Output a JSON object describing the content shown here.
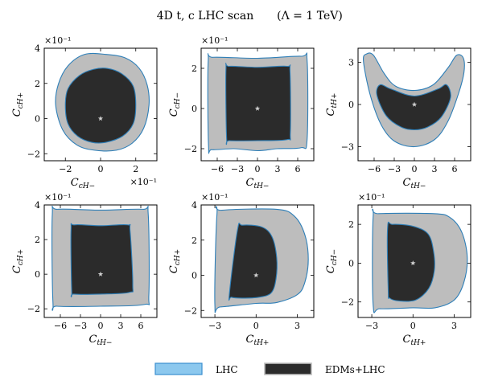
{
  "title": "4D t, c LHC scan",
  "subtitle": "(Λ = 1 TeV)",
  "colors": {
    "lhc_fill": "#bdbdbd",
    "lhc_edge": "#2e7fb8",
    "edm_fill": "#2b2b2b",
    "edm_edge": "#2e7fb8",
    "star": "#cfcfcf",
    "legend_lhc_fill": "#8cc8ee",
    "legend_lhc_edge": "#3b8fd0",
    "legend_edm_fill": "#2b2b2b",
    "legend_edm_edge": "#bdbdbd"
  },
  "legend": [
    {
      "label": "LHC",
      "key": "lhc"
    },
    {
      "label": "EDMs+LHC",
      "key": "edm"
    }
  ],
  "chart_data": [
    {
      "type": "contour",
      "xlabel": {
        "base": "C",
        "sub": "cH−"
      },
      "ylabel": {
        "base": "C",
        "sub": "cH+"
      },
      "xlim": [
        -3.2,
        3.2
      ],
      "ylim": [
        -2.4,
        4.0
      ],
      "xticks": [
        -2,
        0,
        2
      ],
      "yticks": [
        -2,
        0,
        2,
        4
      ],
      "x_exponent": "×10⁻¹",
      "y_exponent": "×10⁻¹",
      "lhc_region": [
        [
          -2.55,
          0.75
        ],
        [
          -2.4,
          1.95
        ],
        [
          -1.85,
          3.0
        ],
        [
          -0.9,
          3.65
        ],
        [
          0.3,
          3.65
        ],
        [
          1.4,
          3.45
        ],
        [
          2.2,
          2.85
        ],
        [
          2.65,
          1.9
        ],
        [
          2.75,
          0.75
        ],
        [
          2.45,
          -0.55
        ],
        [
          1.8,
          -1.4
        ],
        [
          0.9,
          -1.8
        ],
        [
          -0.35,
          -1.8
        ],
        [
          -1.35,
          -1.5
        ],
        [
          -2.15,
          -0.65
        ]
      ],
      "edm_region": [
        [
          -2.0,
          0.75
        ],
        [
          -1.85,
          1.7
        ],
        [
          -1.2,
          2.45
        ],
        [
          -0.4,
          2.8
        ],
        [
          0.4,
          2.85
        ],
        [
          1.2,
          2.55
        ],
        [
          1.85,
          1.85
        ],
        [
          2.0,
          0.75
        ],
        [
          1.85,
          -0.3
        ],
        [
          1.25,
          -1.0
        ],
        [
          0.3,
          -1.35
        ],
        [
          -0.5,
          -1.35
        ],
        [
          -1.3,
          -1.0
        ],
        [
          -1.85,
          -0.3
        ]
      ],
      "best_fit": [
        0,
        0
      ]
    },
    {
      "type": "contour",
      "xlabel": {
        "base": "C",
        "sub": "tH−"
      },
      "ylabel": {
        "base": "C",
        "sub": "cH−"
      },
      "xlim": [
        -8.4,
        8.4
      ],
      "ylim": [
        -2.6,
        3.0
      ],
      "xticks": [
        -6,
        -3,
        0,
        3,
        6
      ],
      "yticks": [
        -2,
        0,
        2
      ],
      "x_exponent": "",
      "y_exponent": "×10⁻¹",
      "lhc_region": [
        [
          -7.3,
          -1.85
        ],
        [
          -7.35,
          2.35
        ],
        [
          -6.6,
          2.55
        ],
        [
          0,
          2.5
        ],
        [
          6.5,
          2.6
        ],
        [
          7.4,
          2.4
        ],
        [
          7.4,
          -1.55
        ],
        [
          6.5,
          -1.95
        ],
        [
          3.0,
          -2.0
        ],
        [
          0,
          -2.1
        ],
        [
          -3.5,
          -2.0
        ],
        [
          -6.8,
          -2.05
        ]
      ],
      "edm_region": [
        [
          -4.6,
          -1.5
        ],
        [
          -4.7,
          1.95
        ],
        [
          -4.2,
          2.1
        ],
        [
          0,
          2.05
        ],
        [
          4.4,
          2.1
        ],
        [
          4.85,
          1.85
        ],
        [
          4.9,
          -1.2
        ],
        [
          4.4,
          -1.55
        ],
        [
          0,
          -1.6
        ],
        [
          -4.2,
          -1.6
        ]
      ],
      "best_fit": [
        0,
        0
      ]
    },
    {
      "type": "contour",
      "xlabel": {
        "base": "C",
        "sub": "tH−"
      },
      "ylabel": {
        "base": "C",
        "sub": "tH+"
      },
      "xlim": [
        -8.4,
        8.4
      ],
      "ylim": [
        -4.0,
        4.0
      ],
      "xticks": [
        -6,
        -3,
        0,
        3,
        6
      ],
      "yticks": [
        -3,
        0,
        3
      ],
      "x_exponent": "",
      "y_exponent": "",
      "lhc_region": [
        [
          -7.6,
          3.1
        ],
        [
          -7.1,
          3.6
        ],
        [
          -6.1,
          3.5
        ],
        [
          -4.5,
          2.2
        ],
        [
          -2.8,
          1.3
        ],
        [
          0,
          1.0
        ],
        [
          2.8,
          1.4
        ],
        [
          5.0,
          2.6
        ],
        [
          6.3,
          3.5
        ],
        [
          7.3,
          3.3
        ],
        [
          7.4,
          2.3
        ],
        [
          6.6,
          0.8
        ],
        [
          5.0,
          -1.2
        ],
        [
          3.0,
          -2.5
        ],
        [
          0,
          -3.0
        ],
        [
          -3.0,
          -2.6
        ],
        [
          -5.0,
          -1.4
        ],
        [
          -6.6,
          0.7
        ]
      ],
      "edm_region": [
        [
          -5.6,
          0.7
        ],
        [
          -5.1,
          1.4
        ],
        [
          -3.5,
          1.1
        ],
        [
          0,
          0.6
        ],
        [
          3.5,
          1.1
        ],
        [
          4.8,
          1.4
        ],
        [
          5.4,
          0.5
        ],
        [
          4.0,
          -0.9
        ],
        [
          2.0,
          -1.6
        ],
        [
          0,
          -1.8
        ],
        [
          -2.0,
          -1.6
        ],
        [
          -4.2,
          -0.8
        ]
      ],
      "best_fit": [
        0,
        0
      ]
    },
    {
      "type": "contour",
      "xlabel": {
        "base": "C",
        "sub": "tH−"
      },
      "ylabel": {
        "base": "C",
        "sub": "cH+"
      },
      "xlim": [
        -8.4,
        8.4
      ],
      "ylim": [
        -2.5,
        4.0
      ],
      "xticks": [
        -6,
        -3,
        0,
        3,
        6
      ],
      "yticks": [
        -2,
        0,
        2,
        4
      ],
      "x_exponent": "",
      "y_exponent": "×10⁻¹",
      "lhc_region": [
        [
          -7.1,
          -1.65
        ],
        [
          -7.2,
          3.45
        ],
        [
          -6.4,
          3.75
        ],
        [
          0,
          3.7
        ],
        [
          6.3,
          3.75
        ],
        [
          7.1,
          3.5
        ],
        [
          7.2,
          -1.2
        ],
        [
          6.5,
          -1.75
        ],
        [
          0,
          -1.85
        ],
        [
          -6.5,
          -1.85
        ]
      ],
      "edm_region": [
        [
          -4.3,
          -1.0
        ],
        [
          -4.4,
          2.55
        ],
        [
          -3.9,
          2.85
        ],
        [
          0,
          2.8
        ],
        [
          4.0,
          2.85
        ],
        [
          4.4,
          2.5
        ],
        [
          4.8,
          -0.6
        ],
        [
          4.3,
          -1.05
        ],
        [
          0,
          -1.15
        ],
        [
          -4.0,
          -1.15
        ]
      ],
      "best_fit": [
        0,
        0
      ]
    },
    {
      "type": "contour",
      "xlabel": {
        "base": "C",
        "sub": "tH+"
      },
      "ylabel": {
        "base": "C",
        "sub": "cH+"
      },
      "xlim": [
        -4.0,
        4.2
      ],
      "ylim": [
        -2.4,
        4.0
      ],
      "xticks": [
        -3,
        0,
        3
      ],
      "yticks": [
        -2,
        0,
        2,
        4
      ],
      "x_exponent": "",
      "y_exponent": "×10⁻¹",
      "lhc_region": [
        [
          -3.0,
          -1.7
        ],
        [
          -2.85,
          3.45
        ],
        [
          -2.5,
          3.7
        ],
        [
          1.5,
          3.75
        ],
        [
          2.8,
          3.35
        ],
        [
          3.55,
          2.3
        ],
        [
          3.8,
          0.9
        ],
        [
          3.55,
          -0.4
        ],
        [
          3.0,
          -1.1
        ],
        [
          1.5,
          -1.55
        ],
        [
          0,
          -1.6
        ],
        [
          -2.6,
          -1.8
        ]
      ],
      "edm_region": [
        [
          -1.95,
          -1.1
        ],
        [
          -1.35,
          2.6
        ],
        [
          -1.0,
          2.85
        ],
        [
          0.4,
          2.75
        ],
        [
          1.15,
          2.2
        ],
        [
          1.5,
          1.0
        ],
        [
          1.45,
          -0.2
        ],
        [
          1.1,
          -1.0
        ],
        [
          0.2,
          -1.25
        ],
        [
          -1.0,
          -1.3
        ],
        [
          -1.8,
          -1.25
        ]
      ],
      "best_fit": [
        0,
        0
      ]
    },
    {
      "type": "contour",
      "xlabel": {
        "base": "C",
        "sub": "tH+"
      },
      "ylabel": {
        "base": "C",
        "sub": "cH−"
      },
      "xlim": [
        -4.0,
        4.2
      ],
      "ylim": [
        -2.8,
        3.0
      ],
      "xticks": [
        -3,
        0,
        3
      ],
      "yticks": [
        -2,
        0,
        2
      ],
      "x_exponent": "",
      "y_exponent": "×10⁻¹",
      "lhc_region": [
        [
          -2.9,
          -2.15
        ],
        [
          -2.9,
          2.4
        ],
        [
          -2.5,
          2.55
        ],
        [
          1.5,
          2.55
        ],
        [
          2.7,
          2.35
        ],
        [
          3.55,
          1.6
        ],
        [
          3.95,
          0.3
        ],
        [
          3.7,
          -1.0
        ],
        [
          3.0,
          -1.9
        ],
        [
          1.6,
          -2.3
        ],
        [
          0,
          -2.3
        ],
        [
          -2.4,
          -2.35
        ]
      ],
      "edm_region": [
        [
          -1.8,
          -1.45
        ],
        [
          -1.85,
          1.8
        ],
        [
          -1.5,
          2.0
        ],
        [
          0,
          1.9
        ],
        [
          1.1,
          1.5
        ],
        [
          1.5,
          0.6
        ],
        [
          1.55,
          -0.4
        ],
        [
          1.15,
          -1.3
        ],
        [
          0.2,
          -1.9
        ],
        [
          -1.0,
          -1.95
        ],
        [
          -1.7,
          -1.8
        ]
      ],
      "best_fit": [
        0,
        0
      ]
    }
  ]
}
